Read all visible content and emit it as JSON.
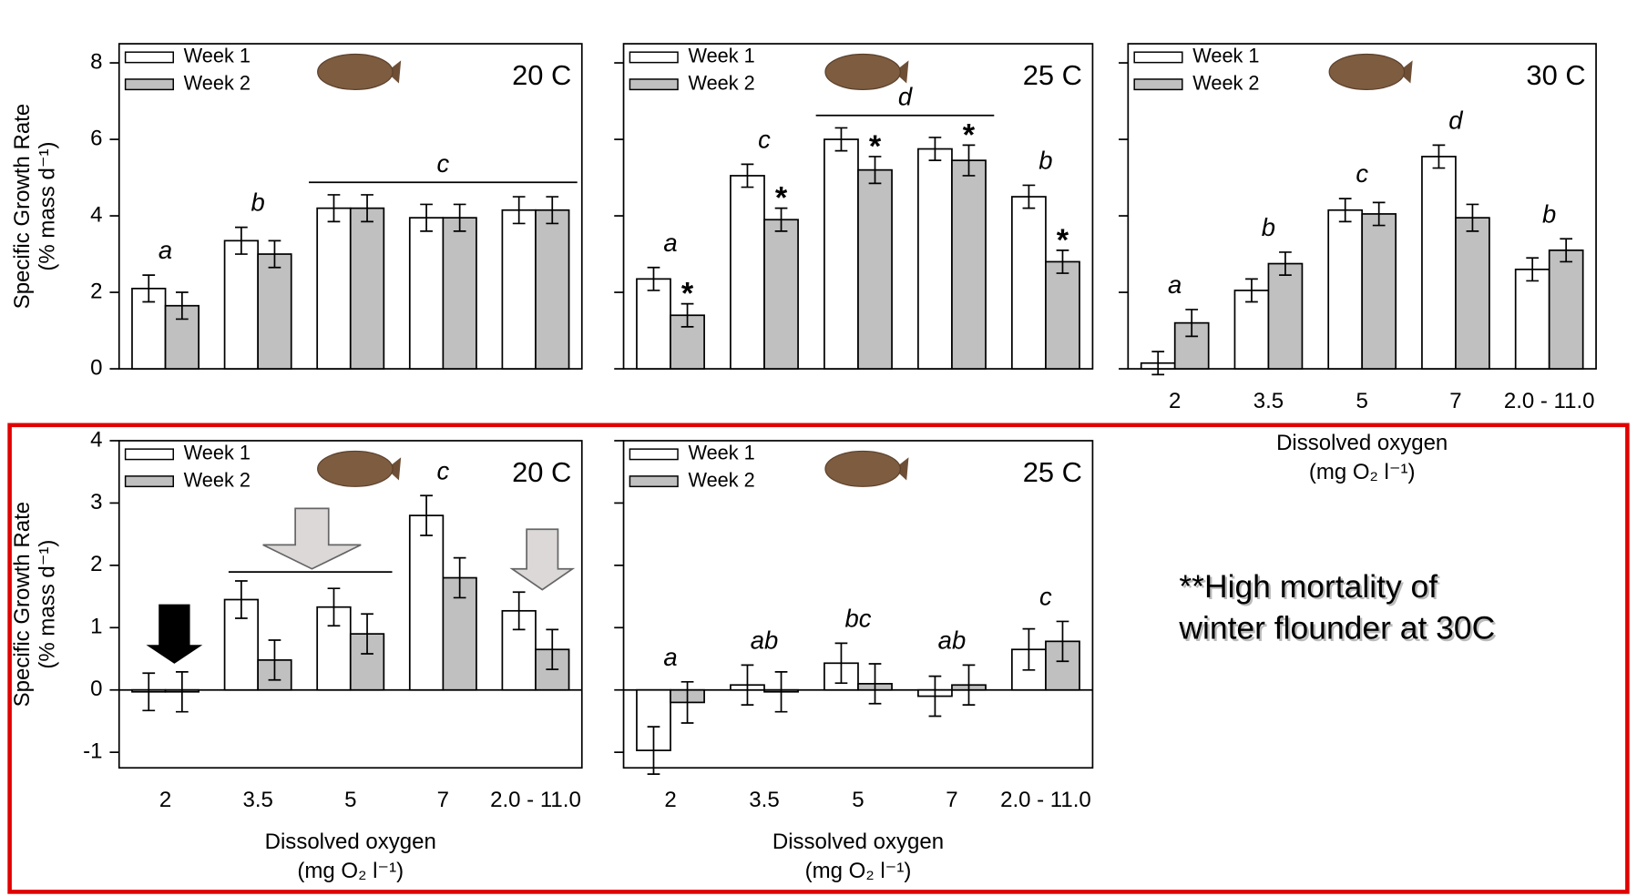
{
  "chart_data": [
    {
      "type": "bar",
      "title": "20 C",
      "categories": [
        null,
        null,
        null,
        null,
        null
      ],
      "series": [
        {
          "name": "Week 1",
          "color": "#ffffff",
          "values": [
            2.1,
            3.35,
            4.2,
            3.95,
            4.15
          ],
          "errors": [
            0.35,
            0.35,
            0.35,
            0.35,
            0.35
          ]
        },
        {
          "name": "Week 2",
          "color": "#c0c0c0",
          "values": [
            1.65,
            3.0,
            4.2,
            3.95,
            4.15
          ],
          "errors": [
            0.35,
            0.35,
            0.35,
            0.35,
            0.35
          ]
        }
      ],
      "letters": [
        {
          "text": "a",
          "from": 0,
          "to": 0
        },
        {
          "text": "b",
          "from": 1,
          "to": 1
        },
        {
          "text": "c",
          "from": 2,
          "to": 4
        }
      ],
      "ylim": [
        0,
        8.5
      ],
      "yticks": [
        0,
        2,
        4,
        6,
        8
      ],
      "ytick_labels": true,
      "y_label": [
        "Specific Growth Rate",
        "(% mass d⁻¹)"
      ]
    },
    {
      "type": "bar",
      "title": "25 C",
      "categories": [
        null,
        null,
        null,
        null,
        null
      ],
      "series": [
        {
          "name": "Week 1",
          "color": "#ffffff",
          "values": [
            2.35,
            5.05,
            6.0,
            5.75,
            4.5
          ],
          "errors": [
            0.3,
            0.3,
            0.3,
            0.3,
            0.3
          ]
        },
        {
          "name": "Week 2",
          "color": "#c0c0c0",
          "values": [
            1.4,
            3.9,
            5.2,
            5.45,
            2.8
          ],
          "errors": [
            0.3,
            0.3,
            0.35,
            0.4,
            0.3
          ],
          "asterisk": "*",
          "asterisk_on": [
            0,
            1,
            2,
            3,
            4
          ]
        }
      ],
      "letters": [
        {
          "text": "a",
          "from": 0,
          "to": 0
        },
        {
          "text": "c",
          "from": 1,
          "to": 1
        },
        {
          "text": "d",
          "from": 2,
          "to": 3
        },
        {
          "text": "b",
          "from": 4,
          "to": 4
        }
      ],
      "ylim": [
        0,
        8.5
      ],
      "yticks": [
        0,
        2,
        4,
        6,
        8
      ],
      "ytick_labels": false
    },
    {
      "type": "bar",
      "title": "30 C",
      "categories": [
        "2",
        "3.5",
        "5",
        "7",
        "2.0 - 11.0"
      ],
      "series": [
        {
          "name": "Week 1",
          "color": "#ffffff",
          "values": [
            0.15,
            2.05,
            4.15,
            5.55,
            2.6
          ],
          "errors": [
            0.3,
            0.3,
            0.3,
            0.3,
            0.3
          ]
        },
        {
          "name": "Week 2",
          "color": "#c0c0c0",
          "values": [
            1.2,
            2.75,
            4.05,
            3.95,
            3.1
          ],
          "errors": [
            0.35,
            0.3,
            0.3,
            0.35,
            0.3
          ]
        }
      ],
      "letters": [
        {
          "text": "a",
          "from": 0,
          "to": 0
        },
        {
          "text": "b",
          "from": 1,
          "to": 1
        },
        {
          "text": "c",
          "from": 2,
          "to": 2
        },
        {
          "text": "d",
          "from": 3,
          "to": 3
        },
        {
          "text": "b",
          "from": 4,
          "to": 4
        }
      ],
      "ylim": [
        0,
        8.5
      ],
      "yticks": [
        0,
        2,
        4,
        6,
        8
      ],
      "ytick_labels": false,
      "x_label": [
        "Dissolved oxygen",
        "(mg O₂ l⁻¹)"
      ]
    },
    {
      "type": "bar",
      "title": "20 C",
      "categories": [
        "2",
        "3.5",
        "5",
        "7",
        "2.0 - 11.0"
      ],
      "series": [
        {
          "name": "Week 1",
          "color": "#ffffff",
          "values": [
            -0.03,
            1.45,
            1.33,
            2.8,
            1.27
          ],
          "errors": [
            0.3,
            0.3,
            0.3,
            0.32,
            0.3
          ]
        },
        {
          "name": "Week 2",
          "color": "#c0c0c0",
          "values": [
            -0.03,
            0.48,
            0.9,
            1.8,
            0.65
          ],
          "errors": [
            0.32,
            0.32,
            0.32,
            0.32,
            0.32
          ]
        }
      ],
      "letters": [
        {
          "text": "c",
          "from": 3,
          "to": 3
        }
      ],
      "ylim": [
        -1.25,
        4
      ],
      "yticks": [
        -1,
        0,
        1,
        2,
        3,
        4
      ],
      "ytick_labels": true,
      "y_label": [
        "Specific Growth Rate",
        "(% mass d⁻¹)"
      ],
      "x_label": [
        "Dissolved oxygen",
        "(mg O₂ l⁻¹)"
      ]
    },
    {
      "type": "bar",
      "title": "25 C",
      "categories": [
        "2",
        "3.5",
        "5",
        "7",
        "2.0 - 11.0"
      ],
      "series": [
        {
          "name": "Week 1",
          "color": "#ffffff",
          "values": [
            -0.97,
            0.08,
            0.43,
            -0.1,
            0.65
          ],
          "errors": [
            0.38,
            0.32,
            0.32,
            0.32,
            0.33
          ]
        },
        {
          "name": "Week 2",
          "color": "#c0c0c0",
          "values": [
            -0.2,
            -0.03,
            0.1,
            0.08,
            0.78
          ],
          "errors": [
            0.33,
            0.32,
            0.32,
            0.32,
            0.32
          ]
        }
      ],
      "letters": [
        {
          "text": "a",
          "from": 0,
          "to": 0
        },
        {
          "text": "ab",
          "from": 1,
          "to": 1
        },
        {
          "text": "bc",
          "from": 2,
          "to": 2
        },
        {
          "text": "ab",
          "from": 3,
          "to": 3
        },
        {
          "text": "c",
          "from": 4,
          "to": 4
        }
      ],
      "ylim": [
        -1.25,
        4
      ],
      "yticks": [
        -1,
        0,
        1,
        2,
        3,
        4
      ],
      "ytick_labels": false,
      "x_label": [
        "Dissolved oxygen",
        "(mg O₂ l⁻¹)"
      ]
    }
  ],
  "annotation": [
    "**High mortality of",
    "winter flounder at 30C"
  ]
}
